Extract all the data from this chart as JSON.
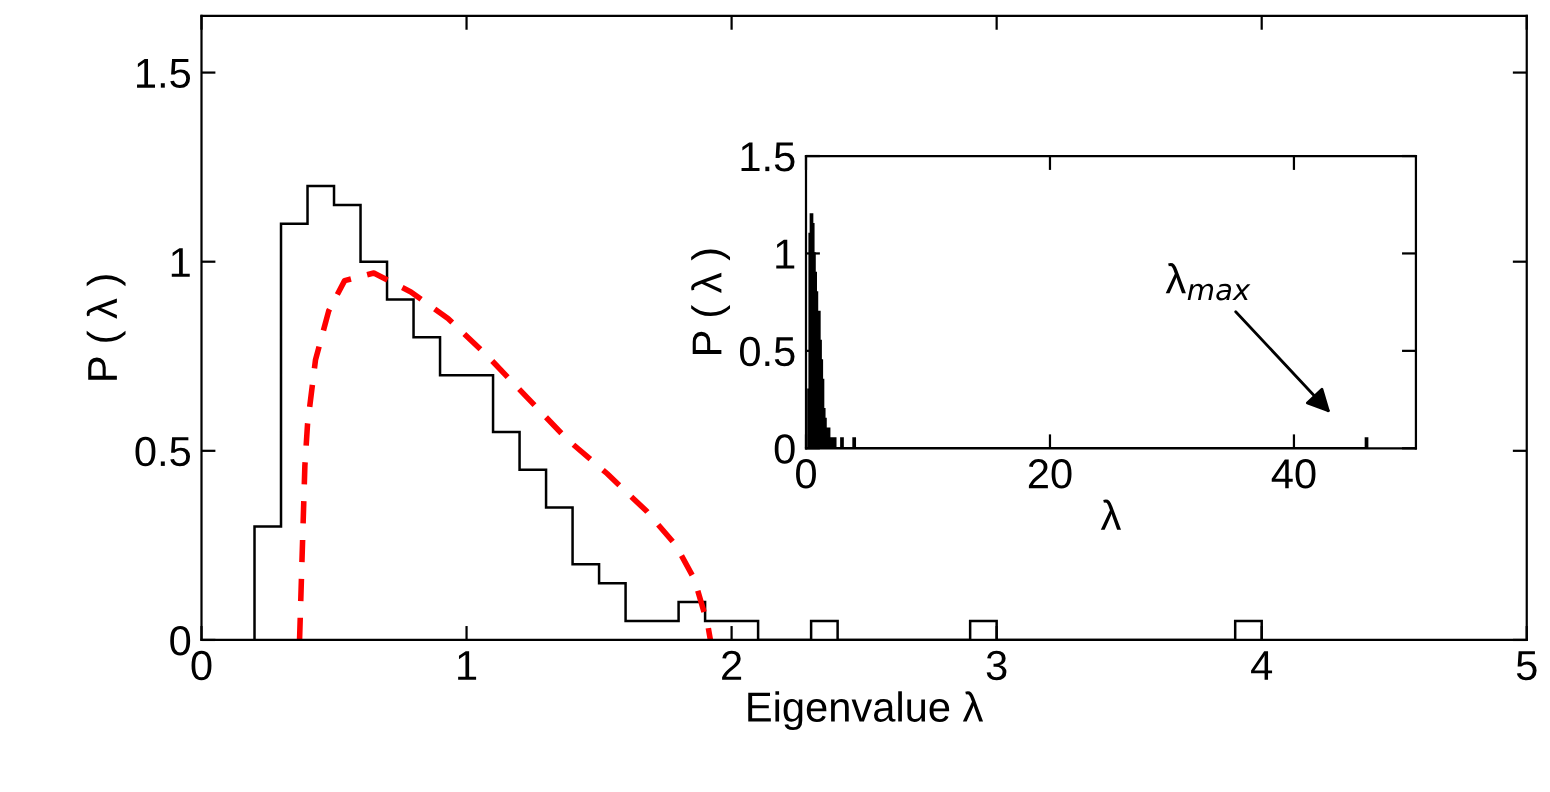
{
  "chart_data": [
    {
      "type": "histogram",
      "xlabel": "Eigenvalue λ",
      "ylabel": "P ( λ )",
      "xlim": [
        0,
        5
      ],
      "ylim": [
        0,
        1.65
      ],
      "xticks": [
        0,
        1,
        2,
        3,
        4,
        5
      ],
      "yticks": [
        0,
        0.5,
        1,
        1.5
      ],
      "series": [
        {
          "type": "histogram",
          "color": "#000000",
          "bins": [
            0.2,
            0.3,
            0.4,
            0.5,
            0.6,
            0.7,
            0.8,
            0.9,
            1.0,
            1.1,
            1.2,
            1.3,
            1.4,
            1.5,
            1.6,
            1.7,
            1.8,
            1.9,
            2.0,
            2.1,
            2.2,
            2.3,
            2.4,
            2.5,
            2.6,
            2.7,
            2.8,
            2.9,
            3.0,
            3.1,
            3.2,
            3.3,
            3.4,
            3.5,
            3.6,
            3.7,
            3.8,
            3.9,
            4.0
          ],
          "values": [
            0.3,
            1.1,
            1.2,
            1.15,
            1.0,
            0.9,
            0.8,
            0.7,
            0.7,
            0.55,
            0.45,
            0.35,
            0.2,
            0.15,
            0.05,
            0.05,
            0.1,
            0.05,
            0.05,
            0,
            0,
            0.05,
            0,
            0,
            0,
            0,
            0,
            0.05,
            0,
            0,
            0,
            0,
            0,
            0,
            0,
            0,
            0,
            0.05
          ]
        },
        {
          "type": "line",
          "color": "#ff0000",
          "line_style": "dashed",
          "x": [
            0.37,
            0.39,
            0.4,
            0.43,
            0.48,
            0.54,
            0.65,
            0.79,
            0.93,
            1.08,
            1.23,
            1.38,
            1.53,
            1.68,
            1.79,
            1.86,
            1.91,
            1.92
          ],
          "values": [
            0,
            0.46,
            0.57,
            0.74,
            0.87,
            0.95,
            0.97,
            0.92,
            0.85,
            0.75,
            0.64,
            0.53,
            0.44,
            0.34,
            0.25,
            0.16,
            0.04,
            0
          ]
        }
      ]
    },
    {
      "type": "histogram",
      "xlabel": "λ",
      "ylabel": "P ( λ )",
      "xlim": [
        0,
        50
      ],
      "ylim": [
        0,
        1.5
      ],
      "xticks": [
        0,
        20,
        40
      ],
      "yticks": [
        0,
        0.5,
        1,
        1.5
      ],
      "color": "#000000",
      "bins": [
        0.2,
        0.3,
        0.4,
        0.5,
        0.6,
        0.7,
        0.8,
        0.9,
        1.0,
        1.1,
        1.2,
        1.3,
        1.4,
        1.5,
        1.6,
        1.7,
        1.8,
        1.9,
        2.0,
        2.1,
        2.2,
        2.3,
        2.4,
        2.5,
        2.6,
        2.7,
        2.8,
        2.9,
        3.0,
        3.1,
        3.2,
        3.3,
        3.4,
        3.5,
        3.6,
        3.7,
        3.8,
        3.9,
        4.0,
        45.9,
        46.0
      ],
      "values": [
        0.3,
        1.1,
        1.2,
        1.15,
        1.0,
        0.9,
        0.8,
        0.7,
        0.7,
        0.55,
        0.45,
        0.35,
        0.2,
        0.15,
        0.05,
        0.05,
        0.1,
        0.05,
        0.05,
        0,
        0,
        0.05,
        0,
        0,
        0,
        0,
        0,
        0.05,
        0,
        0,
        0,
        0,
        0,
        0,
        0,
        0,
        0,
        0.05,
        0,
        0.05
      ],
      "annotations": [
        "λ$_{max}$"
      ]
    }
  ]
}
